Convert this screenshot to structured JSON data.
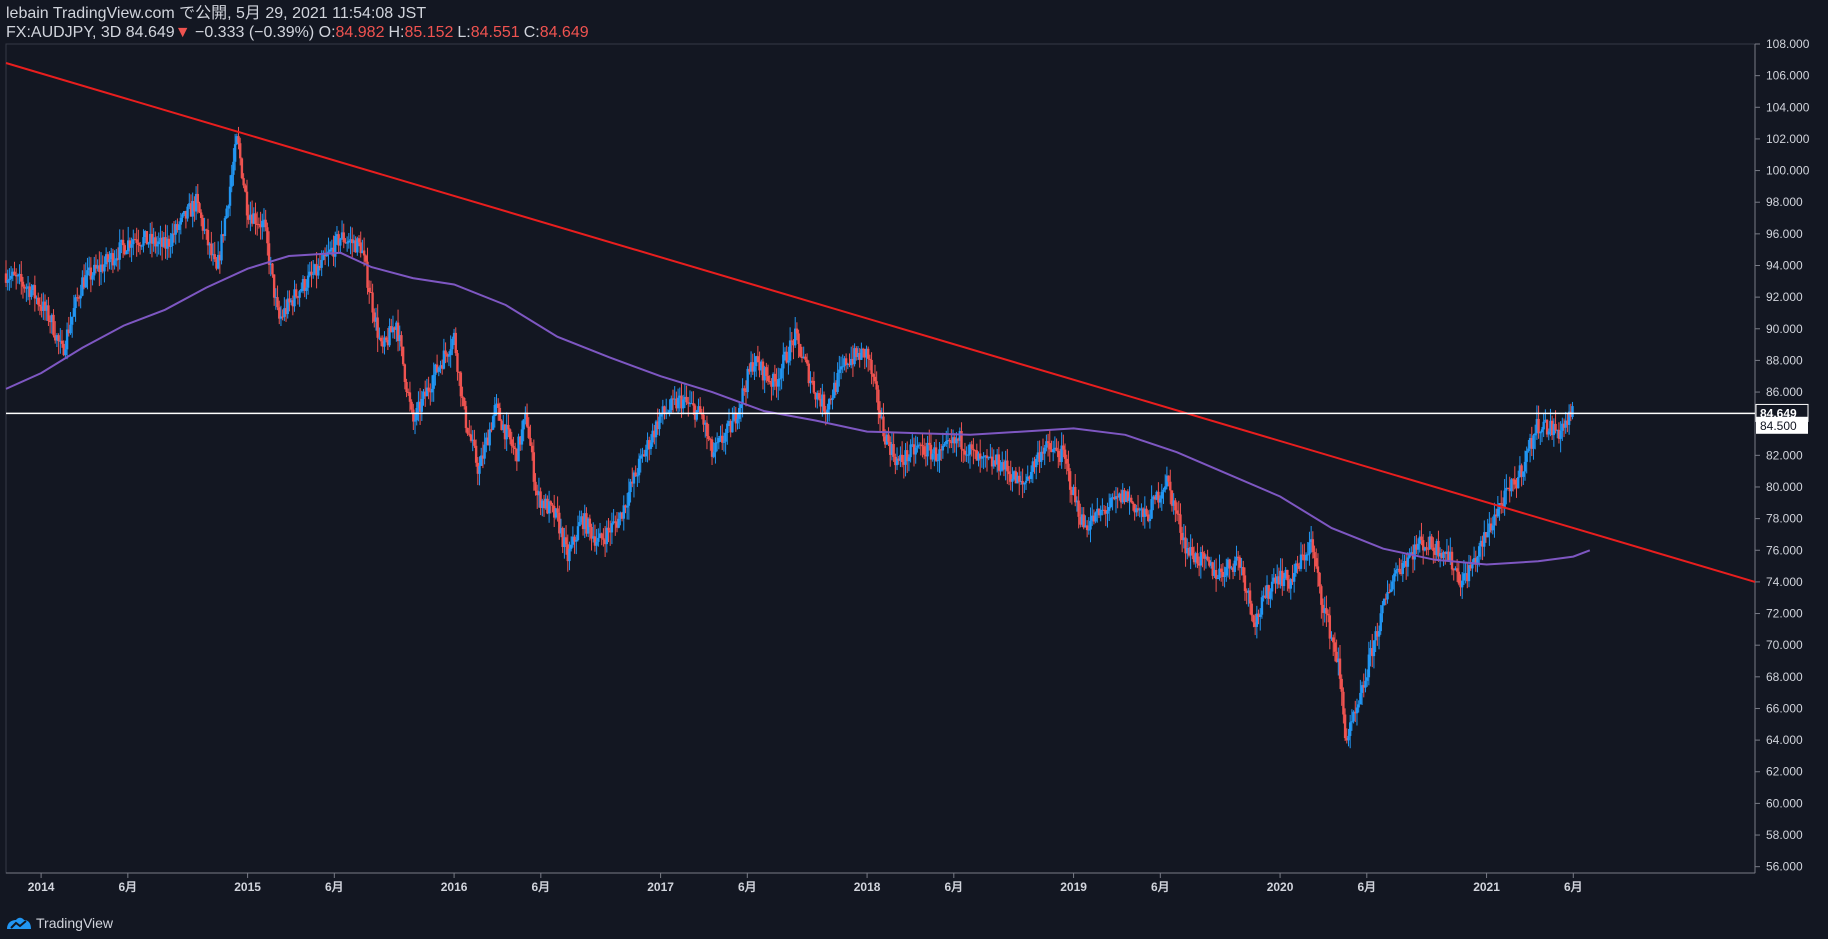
{
  "header": {
    "publish_line": "lebain TradingView.com で公開, 5月 29, 2021 11:54:08 JST",
    "symbol": "FX:AUDJPY, 3D",
    "last": "84.649",
    "change_arrow": "▼",
    "change": "−0.333 (−0.39%)",
    "o_label": "O:",
    "o_value": "84.982",
    "h_label": "H:",
    "h_value": "85.152",
    "l_label": "L:",
    "l_value": "84.551",
    "c_label": "C:",
    "c_value": "84.649"
  },
  "footer": {
    "brand": "TradingView",
    "logo_icon": "tradingview-logo-icon"
  },
  "colors": {
    "background": "#131722",
    "up": "#2196f3",
    "down": "#ef5350",
    "trendline": "#e91e1e",
    "moving_average": "#7e57c2",
    "horizontal_line": "#ffffff",
    "axis_text": "#d1d4dc",
    "axis_line": "#363a45"
  },
  "chart_data": {
    "type": "candlestick",
    "y_ticks": [
      "108.000",
      "106.000",
      "104.000",
      "102.000",
      "100.000",
      "98.000",
      "96.000",
      "94.000",
      "92.000",
      "90.000",
      "88.000",
      "86.000",
      "84.649",
      "84.500",
      "82.000",
      "80.000",
      "78.000",
      "76.000",
      "74.000",
      "72.000",
      "70.000",
      "68.000",
      "66.000",
      "64.000",
      "62.000",
      "60.000",
      "58.000",
      "56.000"
    ],
    "ylim": [
      55.6,
      108.0
    ],
    "x_ticks": [
      {
        "label": "2014",
        "x": 2014.0
      },
      {
        "label": "6月",
        "x": 2014.42
      },
      {
        "label": "2015",
        "x": 2015.0
      },
      {
        "label": "6月",
        "x": 2015.42
      },
      {
        "label": "2016",
        "x": 2016.0
      },
      {
        "label": "6月",
        "x": 2016.42
      },
      {
        "label": "2017",
        "x": 2017.0
      },
      {
        "label": "6月",
        "x": 2017.42
      },
      {
        "label": "2018",
        "x": 2018.0
      },
      {
        "label": "6月",
        "x": 2018.42
      },
      {
        "label": "2019",
        "x": 2019.0
      },
      {
        "label": "6月",
        "x": 2019.42
      },
      {
        "label": "2020",
        "x": 2020.0
      },
      {
        "label": "6月",
        "x": 2020.42
      },
      {
        "label": "2021",
        "x": 2021.0
      },
      {
        "label": "6月",
        "x": 2021.42
      }
    ],
    "xlim": [
      2013.83,
      2022.3
    ],
    "last_price": 84.649,
    "horizontal_level": 84.5,
    "price_path": [
      [
        2013.83,
        93.5
      ],
      [
        2013.95,
        92.5
      ],
      [
        2014.05,
        90.5
      ],
      [
        2014.1,
        88.5
      ],
      [
        2014.2,
        93.0
      ],
      [
        2014.3,
        94.0
      ],
      [
        2014.45,
        95.8
      ],
      [
        2014.6,
        95.2
      ],
      [
        2014.75,
        98.0
      ],
      [
        2014.85,
        93.5
      ],
      [
        2014.95,
        102.0
      ],
      [
        2015.0,
        97.5
      ],
      [
        2015.08,
        96.5
      ],
      [
        2015.15,
        90.5
      ],
      [
        2015.25,
        92.5
      ],
      [
        2015.35,
        93.8
      ],
      [
        2015.45,
        95.8
      ],
      [
        2015.55,
        95.2
      ],
      [
        2015.65,
        88.5
      ],
      [
        2015.72,
        90.5
      ],
      [
        2015.8,
        84.0
      ],
      [
        2015.9,
        87.0
      ],
      [
        2016.0,
        89.5
      ],
      [
        2016.05,
        84.5
      ],
      [
        2016.12,
        81.0
      ],
      [
        2016.2,
        85.0
      ],
      [
        2016.3,
        82.0
      ],
      [
        2016.35,
        84.5
      ],
      [
        2016.4,
        79.5
      ],
      [
        2016.5,
        78.0
      ],
      [
        2016.55,
        75.5
      ],
      [
        2016.62,
        78.0
      ],
      [
        2016.7,
        76.5
      ],
      [
        2016.8,
        78.0
      ],
      [
        2016.9,
        81.5
      ],
      [
        2017.0,
        84.5
      ],
      [
        2017.1,
        85.5
      ],
      [
        2017.2,
        84.5
      ],
      [
        2017.25,
        82.0
      ],
      [
        2017.35,
        84.0
      ],
      [
        2017.45,
        88.0
      ],
      [
        2017.55,
        86.5
      ],
      [
        2017.65,
        89.5
      ],
      [
        2017.75,
        86.0
      ],
      [
        2017.8,
        85.0
      ],
      [
        2017.9,
        88.0
      ],
      [
        2018.0,
        88.5
      ],
      [
        2018.08,
        83.5
      ],
      [
        2018.15,
        81.5
      ],
      [
        2018.25,
        82.5
      ],
      [
        2018.35,
        82.0
      ],
      [
        2018.45,
        83.0
      ],
      [
        2018.55,
        81.5
      ],
      [
        2018.65,
        81.5
      ],
      [
        2018.75,
        80.0
      ],
      [
        2018.85,
        82.5
      ],
      [
        2018.95,
        82.0
      ],
      [
        2019.0,
        79.5
      ],
      [
        2019.05,
        77.5
      ],
      [
        2019.15,
        78.5
      ],
      [
        2019.25,
        79.5
      ],
      [
        2019.35,
        78.0
      ],
      [
        2019.45,
        80.5
      ],
      [
        2019.55,
        76.0
      ],
      [
        2019.7,
        74.5
      ],
      [
        2019.8,
        75.5
      ],
      [
        2019.88,
        71.5
      ],
      [
        2019.98,
        74.5
      ],
      [
        2020.05,
        74.0
      ],
      [
        2020.15,
        76.5
      ],
      [
        2020.2,
        73.0
      ],
      [
        2020.28,
        69.0
      ],
      [
        2020.32,
        64.0
      ],
      [
        2020.38,
        66.0
      ],
      [
        2020.45,
        70.0
      ],
      [
        2020.55,
        74.5
      ],
      [
        2020.68,
        76.5
      ],
      [
        2020.8,
        76.0
      ],
      [
        2020.88,
        74.0
      ],
      [
        2020.95,
        75.5
      ],
      [
        2021.05,
        78.5
      ],
      [
        2021.15,
        80.5
      ],
      [
        2021.25,
        84.0
      ],
      [
        2021.35,
        83.5
      ],
      [
        2021.42,
        84.65
      ]
    ],
    "moving_average": [
      [
        2013.83,
        86.2
      ],
      [
        2014.0,
        87.2
      ],
      [
        2014.2,
        88.8
      ],
      [
        2014.4,
        90.2
      ],
      [
        2014.6,
        91.2
      ],
      [
        2014.8,
        92.6
      ],
      [
        2015.0,
        93.8
      ],
      [
        2015.2,
        94.6
      ],
      [
        2015.45,
        94.8
      ],
      [
        2015.6,
        93.9
      ],
      [
        2015.8,
        93.2
      ],
      [
        2016.0,
        92.8
      ],
      [
        2016.25,
        91.5
      ],
      [
        2016.5,
        89.5
      ],
      [
        2016.75,
        88.2
      ],
      [
        2017.0,
        87.0
      ],
      [
        2017.25,
        86.0
      ],
      [
        2017.5,
        84.8
      ],
      [
        2017.75,
        84.2
      ],
      [
        2018.0,
        83.5
      ],
      [
        2018.25,
        83.4
      ],
      [
        2018.5,
        83.3
      ],
      [
        2018.75,
        83.5
      ],
      [
        2019.0,
        83.7
      ],
      [
        2019.25,
        83.3
      ],
      [
        2019.5,
        82.2
      ],
      [
        2019.75,
        80.8
      ],
      [
        2020.0,
        79.4
      ],
      [
        2020.25,
        77.4
      ],
      [
        2020.5,
        76.1
      ],
      [
        2020.75,
        75.4
      ],
      [
        2021.0,
        75.1
      ],
      [
        2021.25,
        75.3
      ],
      [
        2021.42,
        75.6
      ],
      [
        2021.5,
        76.0
      ]
    ],
    "trendline": {
      "from": [
        2013.83,
        106.8
      ],
      "to": [
        2022.3,
        74.0
      ]
    }
  }
}
